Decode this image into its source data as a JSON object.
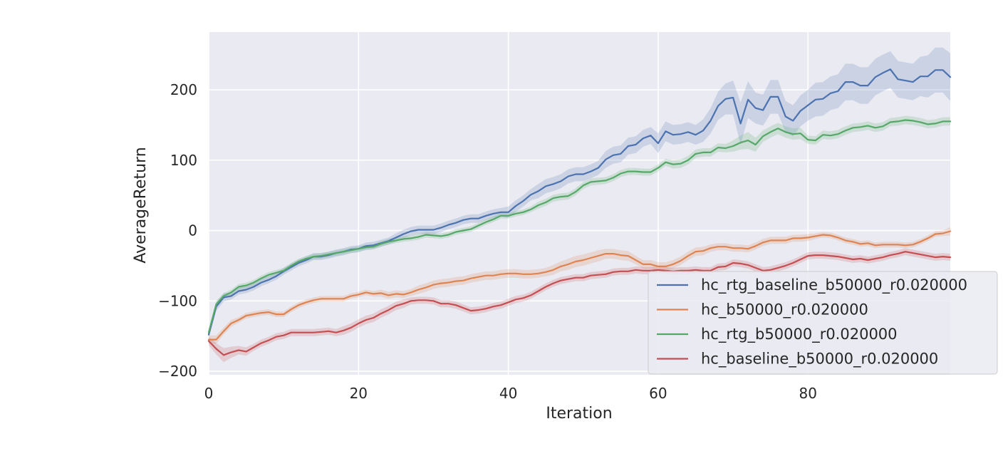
{
  "chart_data": {
    "type": "line",
    "title": "",
    "xlabel": "Iteration",
    "ylabel": "AverageReturn",
    "xlim": [
      0,
      99
    ],
    "ylim": [
      -205,
      282
    ],
    "xticks": [
      0,
      20,
      40,
      60,
      80
    ],
    "yticks": [
      -200,
      -100,
      0,
      100,
      200
    ],
    "xtick_labels": [
      "0",
      "20",
      "40",
      "60",
      "80"
    ],
    "ytick_labels": [
      "−200",
      "−100",
      "0",
      "100",
      "200"
    ],
    "grid": true,
    "legend_position": "lower-right",
    "series": [
      {
        "name": "hc_rtg_baseline_b50000_r0.020000",
        "color": "#4c72b0",
        "x": [
          0,
          1,
          2,
          3,
          4,
          5,
          6,
          7,
          8,
          9,
          10,
          11,
          12,
          13,
          14,
          15,
          16,
          17,
          18,
          19,
          20,
          21,
          22,
          23,
          24,
          25,
          26,
          27,
          28,
          29,
          30,
          31,
          32,
          33,
          34,
          35,
          36,
          37,
          38,
          39,
          40,
          41,
          42,
          43,
          44,
          45,
          46,
          47,
          48,
          49,
          50,
          51,
          52,
          53,
          54,
          55,
          56,
          57,
          58,
          59,
          60,
          61,
          62,
          63,
          64,
          65,
          66,
          67,
          68,
          69,
          70,
          71,
          72,
          73,
          74,
          75,
          76,
          77,
          78,
          79,
          80,
          81,
          82,
          83,
          84,
          85,
          86,
          87,
          88,
          89,
          90,
          91,
          92,
          93,
          94,
          95,
          96,
          97,
          98,
          99
        ],
        "y": [
          -148,
          -108,
          -95,
          -93,
          -86,
          -84,
          -80,
          -74,
          -70,
          -65,
          -58,
          -52,
          -46,
          -42,
          -37,
          -37,
          -35,
          -32,
          -30,
          -27,
          -26,
          -22,
          -21,
          -18,
          -15,
          -10,
          -5,
          -1,
          1,
          1,
          1,
          4,
          8,
          11,
          15,
          17,
          17,
          21,
          24,
          26,
          26,
          35,
          42,
          51,
          56,
          63,
          66,
          70,
          77,
          80,
          80,
          84,
          89,
          101,
          107,
          109,
          120,
          122,
          131,
          135,
          124,
          141,
          136,
          137,
          140,
          136,
          142,
          156,
          177,
          187,
          189,
          152,
          186,
          174,
          171,
          190,
          190,
          162,
          156,
          170,
          178,
          186,
          187,
          195,
          198,
          211,
          211,
          206,
          206,
          218,
          224,
          229,
          215,
          213,
          211,
          219,
          219,
          228,
          228,
          218
        ],
        "band": [
          4,
          6,
          6,
          5,
          5,
          5,
          5,
          5,
          5,
          5,
          5,
          5,
          5,
          5,
          5,
          5,
          5,
          5,
          5,
          5,
          5,
          5,
          5,
          5,
          5,
          6,
          6,
          6,
          6,
          6,
          6,
          6,
          6,
          6,
          6,
          6,
          6,
          6,
          6,
          6,
          8,
          8,
          8,
          8,
          10,
          10,
          10,
          10,
          10,
          10,
          10,
          10,
          10,
          12,
          12,
          12,
          12,
          12,
          12,
          12,
          14,
          14,
          14,
          14,
          14,
          14,
          16,
          18,
          20,
          22,
          24,
          30,
          26,
          22,
          22,
          24,
          24,
          22,
          22,
          22,
          22,
          24,
          24,
          24,
          24,
          26,
          26,
          26,
          26,
          26,
          26,
          26,
          26,
          26,
          26,
          28,
          30,
          32,
          32,
          34
        ]
      },
      {
        "name": "hc_b50000_r0.020000",
        "color": "#dd8452",
        "x": [
          0,
          1,
          2,
          3,
          4,
          5,
          6,
          7,
          8,
          9,
          10,
          11,
          12,
          13,
          14,
          15,
          16,
          17,
          18,
          19,
          20,
          21,
          22,
          23,
          24,
          25,
          26,
          27,
          28,
          29,
          30,
          31,
          32,
          33,
          34,
          35,
          36,
          37,
          38,
          39,
          40,
          41,
          42,
          43,
          44,
          45,
          46,
          47,
          48,
          49,
          50,
          51,
          52,
          53,
          54,
          55,
          56,
          57,
          58,
          59,
          60,
          61,
          62,
          63,
          64,
          65,
          66,
          67,
          68,
          69,
          70,
          71,
          72,
          73,
          74,
          75,
          76,
          77,
          78,
          79,
          80,
          81,
          82,
          83,
          84,
          85,
          86,
          87,
          88,
          89,
          90,
          91,
          92,
          93,
          94,
          95,
          96,
          97,
          98,
          99
        ],
        "y": [
          -155,
          -155,
          -143,
          -132,
          -127,
          -121,
          -119,
          -117,
          -116,
          -119,
          -119,
          -112,
          -106,
          -102,
          -99,
          -97,
          -97,
          -97,
          -97,
          -93,
          -91,
          -88,
          -90,
          -89,
          -92,
          -90,
          -91,
          -88,
          -84,
          -81,
          -77,
          -75,
          -74,
          -72,
          -71,
          -68,
          -66,
          -64,
          -64,
          -62,
          -61,
          -61,
          -62,
          -62,
          -61,
          -59,
          -56,
          -51,
          -48,
          -44,
          -42,
          -39,
          -36,
          -33,
          -33,
          -35,
          -36,
          -42,
          -48,
          -48,
          -51,
          -51,
          -48,
          -43,
          -36,
          -30,
          -29,
          -25,
          -23,
          -23,
          -25,
          -25,
          -26,
          -22,
          -17,
          -14,
          -14,
          -14,
          -11,
          -11,
          -10,
          -8,
          -6,
          -7,
          -10,
          -14,
          -16,
          -19,
          -18,
          -21,
          -20,
          -20,
          -20,
          -21,
          -20,
          -16,
          -11,
          -5,
          -4,
          -1
        ],
        "band": [
          6,
          6,
          5,
          5,
          4,
          4,
          4,
          4,
          4,
          4,
          4,
          4,
          4,
          4,
          4,
          4,
          4,
          4,
          4,
          4,
          4,
          4,
          4,
          5,
          5,
          5,
          5,
          5,
          6,
          6,
          6,
          6,
          6,
          6,
          6,
          6,
          6,
          6,
          6,
          6,
          6,
          6,
          6,
          6,
          6,
          6,
          7,
          7,
          8,
          8,
          8,
          8,
          8,
          7,
          7,
          7,
          7,
          6,
          6,
          6,
          6,
          6,
          6,
          6,
          6,
          6,
          6,
          5,
          5,
          5,
          5,
          5,
          5,
          5,
          5,
          5,
          5,
          5,
          5,
          5,
          5,
          4,
          4,
          4,
          4,
          4,
          4,
          4,
          4,
          4,
          4,
          4,
          4,
          4,
          4,
          4,
          4,
          4,
          4,
          6
        ]
      },
      {
        "name": "hc_rtg_b50000_r0.020000",
        "color": "#55a868",
        "x": [
          0,
          1,
          2,
          3,
          4,
          5,
          6,
          7,
          8,
          9,
          10,
          11,
          12,
          13,
          14,
          15,
          16,
          17,
          18,
          19,
          20,
          21,
          22,
          23,
          24,
          25,
          26,
          27,
          28,
          29,
          30,
          31,
          32,
          33,
          34,
          35,
          36,
          37,
          38,
          39,
          40,
          41,
          42,
          43,
          44,
          45,
          46,
          47,
          48,
          49,
          50,
          51,
          52,
          53,
          54,
          55,
          56,
          57,
          58,
          59,
          60,
          61,
          62,
          63,
          64,
          65,
          66,
          67,
          68,
          69,
          70,
          71,
          72,
          73,
          74,
          75,
          76,
          77,
          78,
          79,
          80,
          81,
          82,
          83,
          84,
          85,
          86,
          87,
          88,
          89,
          90,
          91,
          92,
          93,
          94,
          95,
          96,
          97,
          98,
          99
        ],
        "y": [
          -145,
          -105,
          -93,
          -88,
          -80,
          -78,
          -74,
          -68,
          -63,
          -60,
          -57,
          -50,
          -44,
          -40,
          -37,
          -36,
          -34,
          -32,
          -30,
          -28,
          -26,
          -24,
          -23,
          -19,
          -16,
          -14,
          -12,
          -11,
          -9,
          -6,
          -7,
          -8,
          -6,
          -2,
          0,
          2,
          7,
          12,
          16,
          21,
          21,
          24,
          26,
          30,
          36,
          40,
          46,
          48,
          49,
          55,
          64,
          69,
          70,
          71,
          75,
          81,
          84,
          84,
          83,
          83,
          89,
          97,
          94,
          95,
          100,
          109,
          111,
          111,
          118,
          117,
          120,
          125,
          128,
          122,
          134,
          140,
          145,
          140,
          137,
          138,
          129,
          128,
          136,
          135,
          137,
          142,
          146,
          147,
          149,
          146,
          148,
          154,
          155,
          157,
          156,
          154,
          151,
          152,
          155,
          155
        ],
        "band": [
          5,
          5,
          4,
          4,
          4,
          4,
          4,
          4,
          4,
          4,
          4,
          4,
          4,
          4,
          4,
          4,
          4,
          4,
          4,
          4,
          4,
          4,
          4,
          4,
          4,
          4,
          4,
          4,
          4,
          4,
          4,
          4,
          4,
          4,
          4,
          4,
          4,
          4,
          4,
          4,
          4,
          4,
          4,
          4,
          5,
          5,
          5,
          5,
          5,
          5,
          5,
          5,
          5,
          5,
          5,
          5,
          5,
          5,
          5,
          5,
          5,
          5,
          6,
          6,
          6,
          6,
          6,
          6,
          6,
          6,
          8,
          10,
          12,
          10,
          8,
          8,
          8,
          8,
          8,
          8,
          6,
          6,
          6,
          6,
          6,
          6,
          6,
          6,
          6,
          6,
          6,
          6,
          6,
          6,
          6,
          6,
          6,
          6,
          6,
          6
        ]
      },
      {
        "name": "hc_baseline_b50000_r0.020000",
        "color": "#c44e52",
        "x": [
          0,
          1,
          2,
          3,
          4,
          5,
          6,
          7,
          8,
          9,
          10,
          11,
          12,
          13,
          14,
          15,
          16,
          17,
          18,
          19,
          20,
          21,
          22,
          23,
          24,
          25,
          26,
          27,
          28,
          29,
          30,
          31,
          32,
          33,
          34,
          35,
          36,
          37,
          38,
          39,
          40,
          41,
          42,
          43,
          44,
          45,
          46,
          47,
          48,
          49,
          50,
          51,
          52,
          53,
          54,
          55,
          56,
          57,
          58,
          59,
          60,
          61,
          62,
          63,
          64,
          65,
          66,
          67,
          68,
          69,
          70,
          71,
          72,
          73,
          74,
          75,
          76,
          77,
          78,
          79,
          80,
          81,
          82,
          83,
          84,
          85,
          86,
          87,
          88,
          89,
          90,
          91,
          92,
          93,
          94,
          95,
          96,
          97,
          98,
          99
        ],
        "y": [
          -157,
          -168,
          -177,
          -173,
          -170,
          -172,
          -166,
          -160,
          -156,
          -151,
          -149,
          -145,
          -145,
          -145,
          -145,
          -144,
          -143,
          -145,
          -142,
          -138,
          -132,
          -127,
          -124,
          -118,
          -113,
          -107,
          -104,
          -100,
          -99,
          -99,
          -100,
          -104,
          -104,
          -106,
          -110,
          -114,
          -113,
          -111,
          -108,
          -106,
          -102,
          -98,
          -96,
          -92,
          -86,
          -80,
          -75,
          -71,
          -69,
          -67,
          -67,
          -64,
          -63,
          -62,
          -59,
          -58,
          -58,
          -56,
          -57,
          -57,
          -56,
          -57,
          -58,
          -57,
          -57,
          -56,
          -57,
          -57,
          -52,
          -51,
          -46,
          -47,
          -49,
          -53,
          -57,
          -56,
          -53,
          -50,
          -46,
          -41,
          -36,
          -35,
          -35,
          -36,
          -37,
          -39,
          -41,
          -40,
          -42,
          -40,
          -38,
          -35,
          -33,
          -30,
          -32,
          -34,
          -36,
          -38,
          -37,
          -38
        ],
        "band": [
          6,
          8,
          10,
          8,
          6,
          6,
          5,
          5,
          5,
          5,
          5,
          5,
          5,
          5,
          5,
          5,
          5,
          5,
          6,
          6,
          6,
          6,
          6,
          6,
          6,
          6,
          6,
          5,
          5,
          5,
          5,
          5,
          5,
          5,
          5,
          5,
          5,
          5,
          5,
          5,
          5,
          5,
          5,
          5,
          5,
          5,
          5,
          5,
          5,
          5,
          5,
          5,
          5,
          5,
          5,
          5,
          5,
          5,
          5,
          5,
          5,
          5,
          5,
          5,
          5,
          5,
          5,
          5,
          5,
          5,
          5,
          5,
          5,
          5,
          5,
          5,
          5,
          5,
          5,
          5,
          5,
          5,
          5,
          5,
          5,
          5,
          5,
          5,
          5,
          5,
          5,
          5,
          5,
          5,
          5,
          5,
          5,
          5,
          5,
          5
        ]
      }
    ]
  }
}
